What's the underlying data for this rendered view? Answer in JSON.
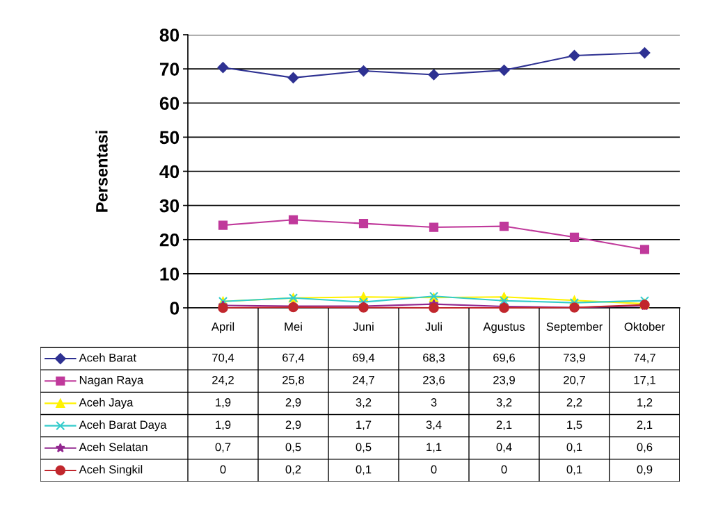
{
  "chart_data": {
    "type": "line",
    "ylabel": "Persentasi",
    "categories": [
      "April",
      "Mei",
      "Juni",
      "Juli",
      "Agustus",
      "September",
      "Oktober"
    ],
    "ylim": [
      0,
      80
    ],
    "yticks": [
      0,
      10,
      20,
      30,
      40,
      50,
      60,
      70,
      80
    ],
    "grid": "y",
    "legend": "bottom",
    "series": [
      {
        "name": "Aceh Barat",
        "color": "#2e3192",
        "marker": "diamond",
        "values": [
          70.4,
          67.4,
          69.4,
          68.3,
          69.6,
          73.9,
          74.7
        ],
        "value_labels": [
          "70,4",
          "67,4",
          "69,4",
          "68,3",
          "69,6",
          "73,9",
          "74,7"
        ]
      },
      {
        "name": "Nagan Raya",
        "color": "#c0399b",
        "marker": "square",
        "values": [
          24.2,
          25.8,
          24.7,
          23.6,
          23.9,
          20.7,
          17.1
        ],
        "value_labels": [
          "24,2",
          "25,8",
          "24,7",
          "23,6",
          "23,9",
          "20,7",
          "17,1"
        ]
      },
      {
        "name": "Aceh Jaya",
        "color": "#fff200",
        "marker": "triangle",
        "values": [
          1.9,
          2.9,
          3.2,
          3,
          3.2,
          2.2,
          1.2
        ],
        "value_labels": [
          "1,9",
          "2,9",
          "3,2",
          "3",
          "3,2",
          "2,2",
          "1,2"
        ]
      },
      {
        "name": "Aceh Barat Daya",
        "color": "#33cccc",
        "marker": "cross",
        "values": [
          1.9,
          2.9,
          1.7,
          3.4,
          2.1,
          1.5,
          2.1
        ],
        "value_labels": [
          "1,9",
          "2,9",
          "1,7",
          "3,4",
          "2,1",
          "1,5",
          "2,1"
        ]
      },
      {
        "name": "Aceh Selatan",
        "color": "#92278f",
        "marker": "star",
        "values": [
          0.7,
          0.5,
          0.5,
          1.1,
          0.4,
          0.1,
          0.6
        ],
        "value_labels": [
          "0,7",
          "0,5",
          "0,5",
          "1,1",
          "0,4",
          "0,1",
          "0,6"
        ]
      },
      {
        "name": "Aceh Singkil",
        "color": "#c1272d",
        "marker": "circle",
        "values": [
          0,
          0.2,
          0.1,
          0,
          0,
          0.1,
          0.9
        ],
        "value_labels": [
          "0",
          "0,2",
          "0,1",
          "0",
          "0",
          "0,1",
          "0,9"
        ]
      }
    ]
  }
}
